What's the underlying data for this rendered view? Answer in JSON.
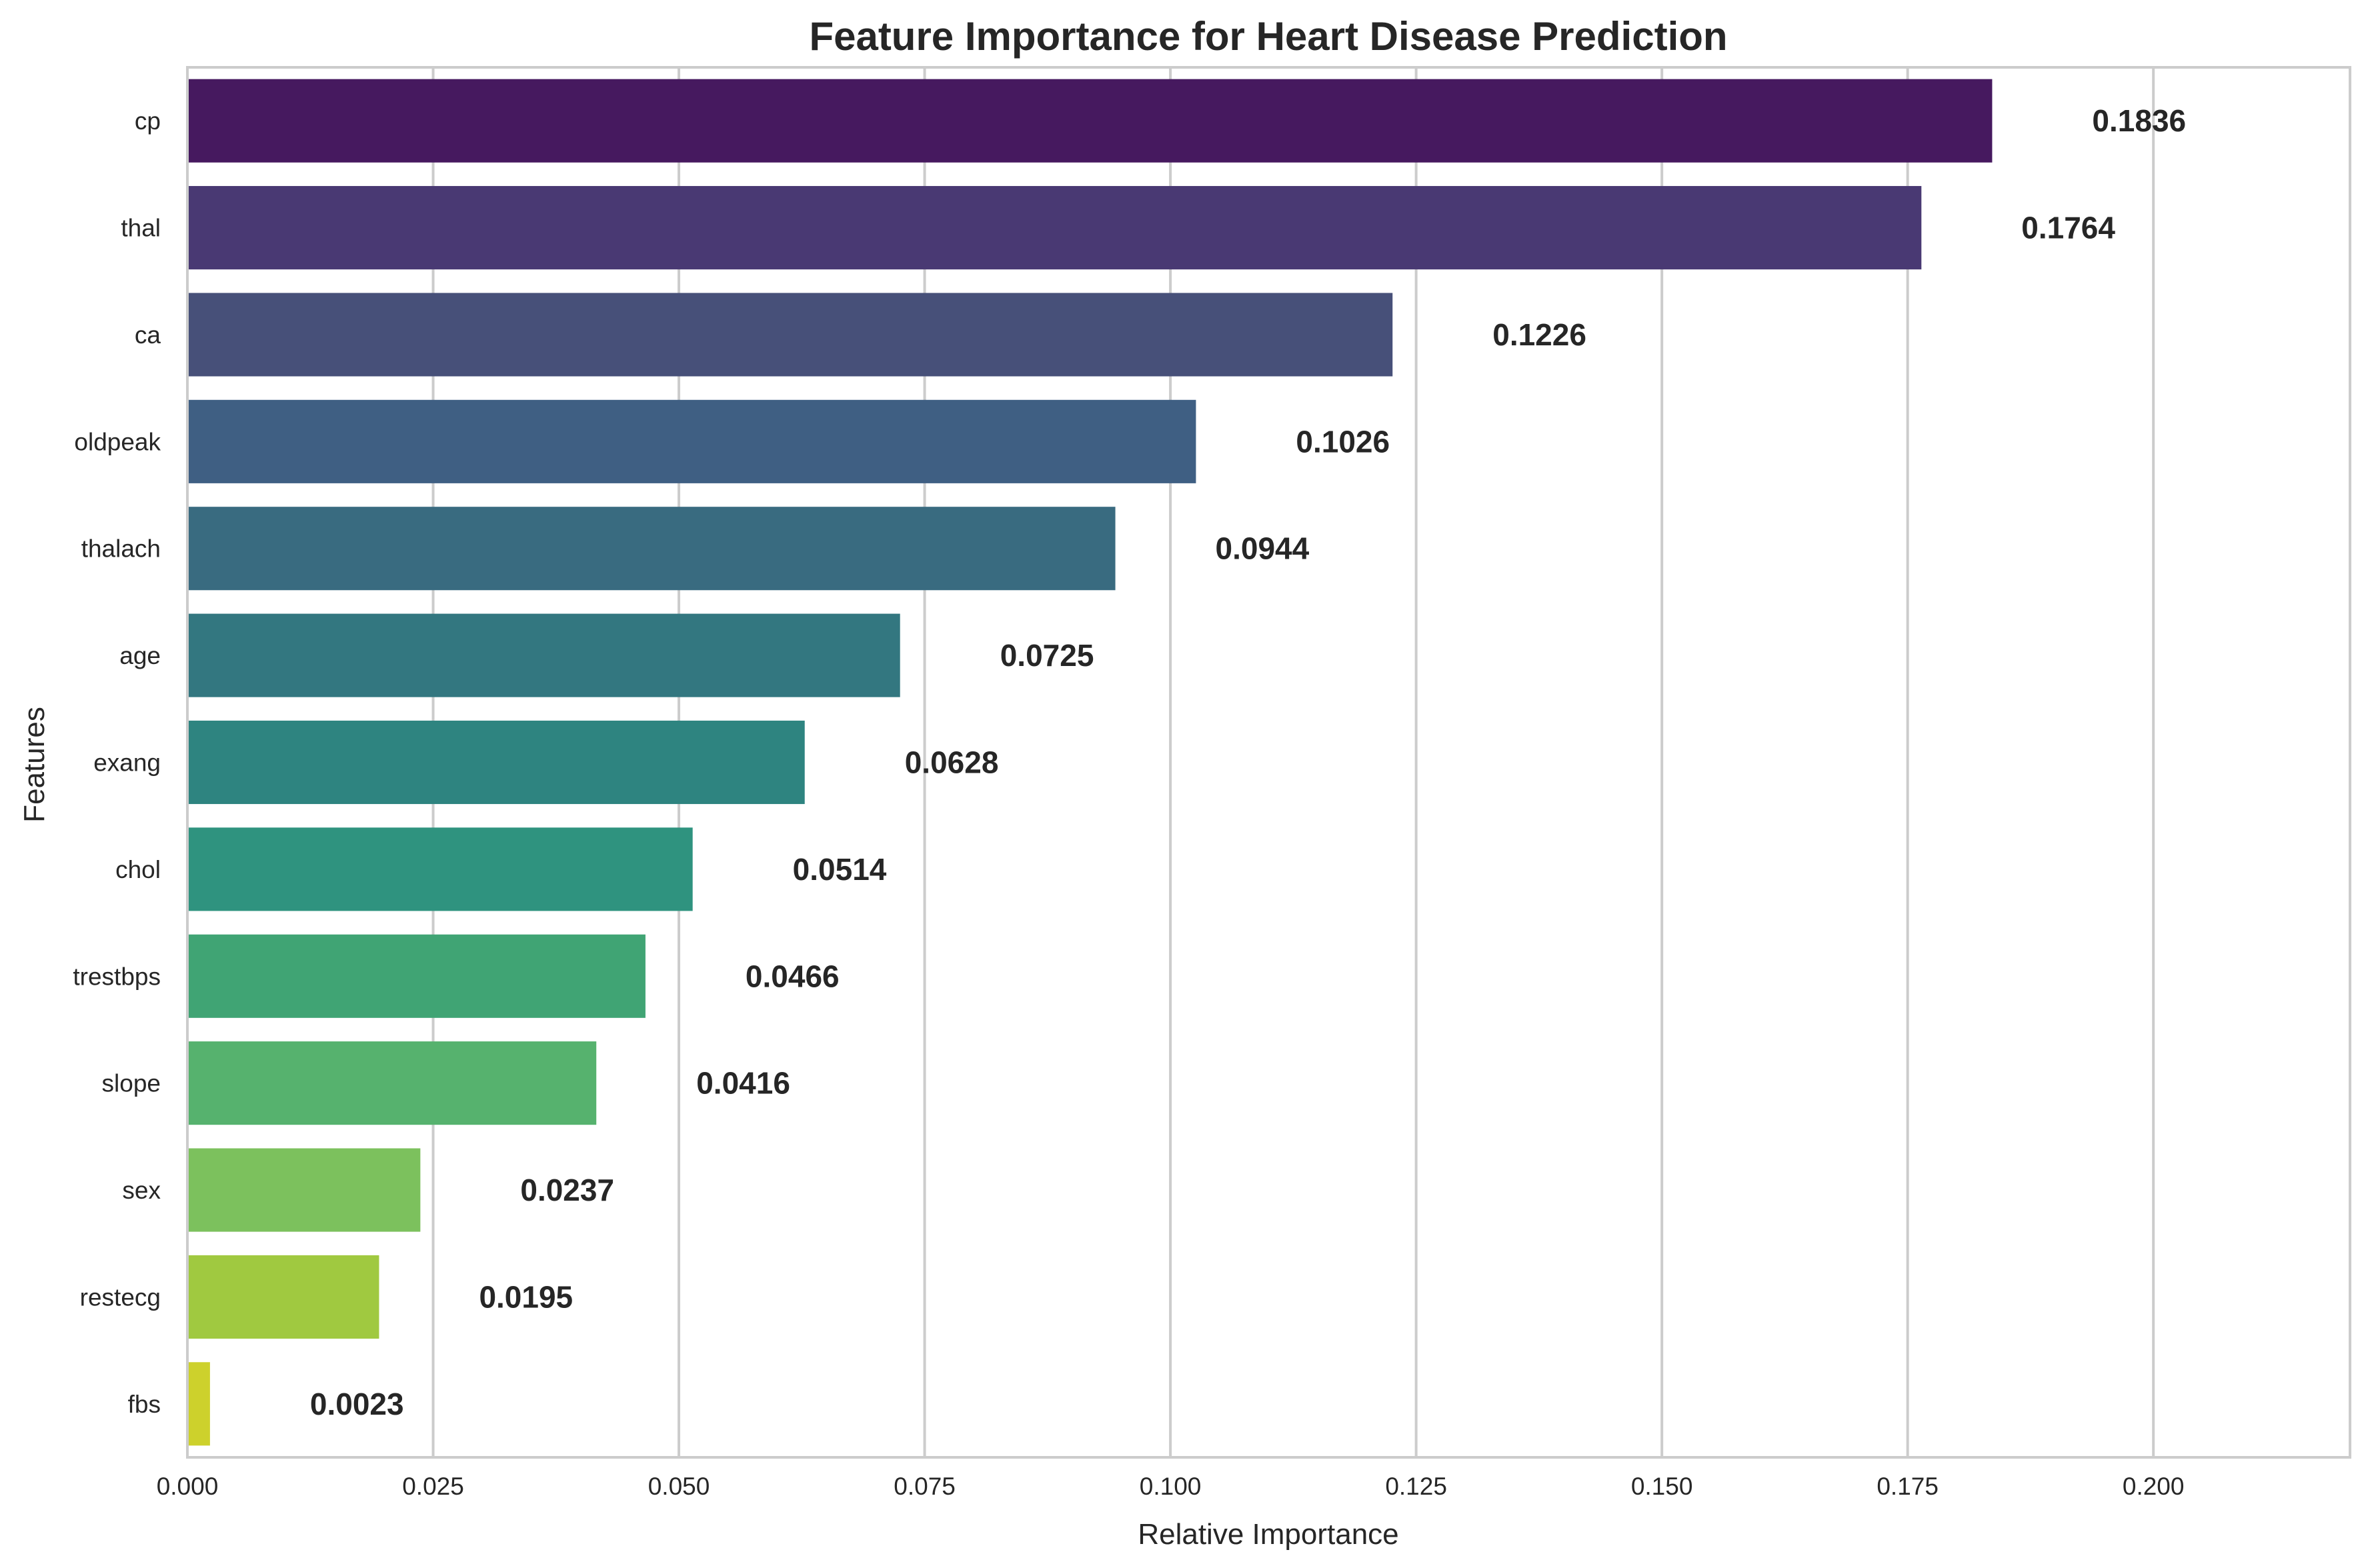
{
  "chart_data": {
    "type": "bar",
    "orientation": "horizontal",
    "title": "Feature Importance for Heart Disease Prediction",
    "xlabel": "Relative Importance",
    "ylabel": "Features",
    "xlim": [
      0,
      0.22
    ],
    "xticks": [
      0.0,
      0.025,
      0.05,
      0.075,
      0.1,
      0.125,
      0.15,
      0.175,
      0.2
    ],
    "xtick_labels": [
      "0.000",
      "0.025",
      "0.050",
      "0.075",
      "0.100",
      "0.125",
      "0.150",
      "0.175",
      "0.200"
    ],
    "grid": "vertical",
    "categories": [
      "cp",
      "thal",
      "ca",
      "oldpeak",
      "thalach",
      "age",
      "exang",
      "chol",
      "trestbps",
      "slope",
      "sex",
      "restecg",
      "fbs"
    ],
    "values": [
      0.1836,
      0.1764,
      0.1226,
      0.1026,
      0.0944,
      0.0725,
      0.0628,
      0.0514,
      0.0466,
      0.0416,
      0.0237,
      0.0195,
      0.0023
    ],
    "value_labels": [
      "0.1836",
      "0.1764",
      "0.1226",
      "0.1026",
      "0.0944",
      "0.0725",
      "0.0628",
      "0.0514",
      "0.0466",
      "0.0416",
      "0.0237",
      "0.0195",
      "0.0023"
    ],
    "colors": [
      "#46195f",
      "#493973",
      "#475079",
      "#3f5f83",
      "#396b80",
      "#337780",
      "#2e8480",
      "#2f937f",
      "#40a474",
      "#56b26e",
      "#7cc15d",
      "#a0c940",
      "#cdd12c"
    ],
    "palette": "viridis"
  }
}
